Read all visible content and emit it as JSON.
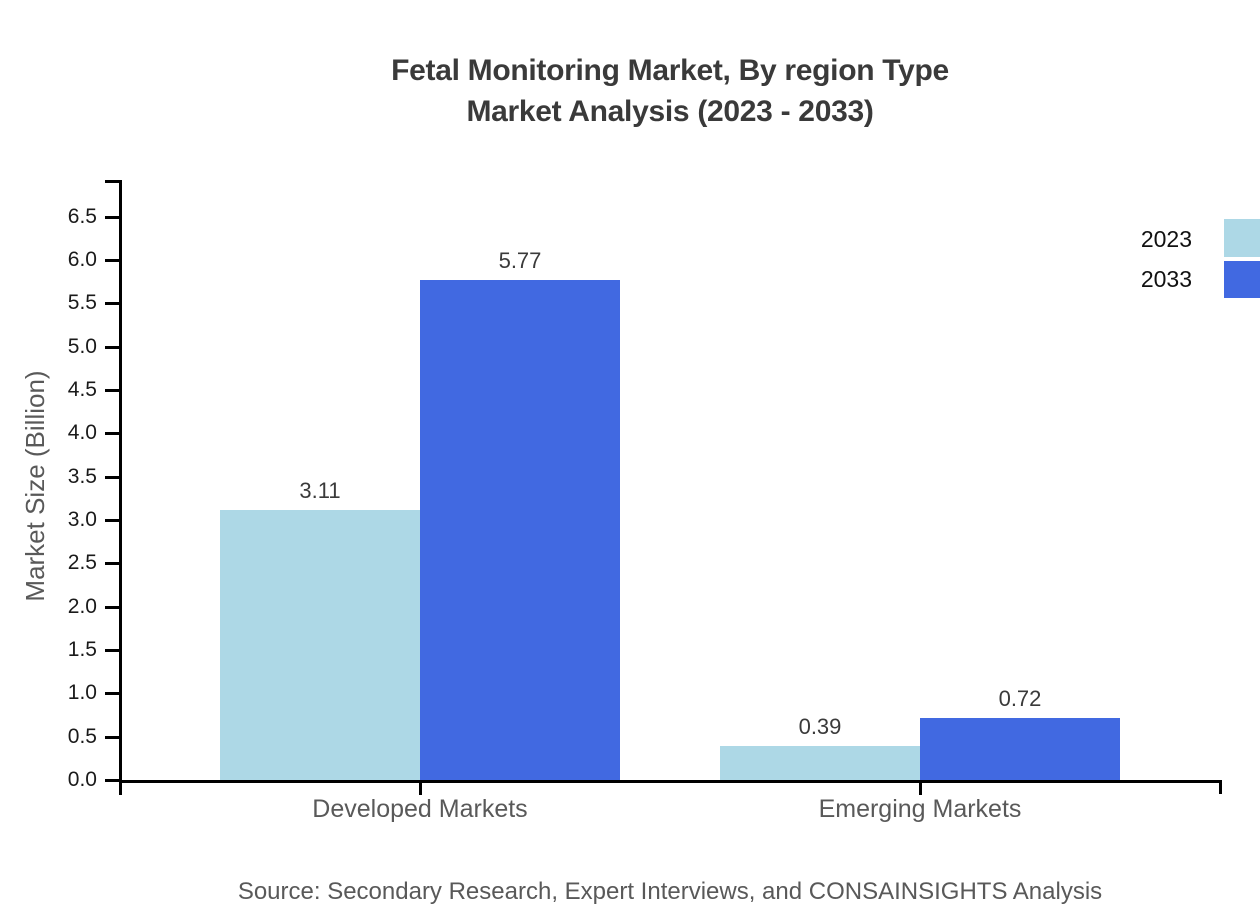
{
  "title": {
    "line1": "Fetal Monitoring Market, By region Type",
    "line2": "Market Analysis (2023 - 2033)"
  },
  "source": "Source: Secondary Research, Expert Interviews, and CONSAINSIGHTS Analysis",
  "legend": [
    {
      "label": "2023",
      "color": "#ADD8E6"
    },
    {
      "label": "2033",
      "color": "#4169E1"
    }
  ],
  "chart_data": {
    "type": "bar",
    "title": "Fetal Monitoring Market, By region Type Market Analysis (2023 - 2033)",
    "categories": [
      "Developed Markets",
      "Emerging Markets"
    ],
    "series": [
      {
        "name": "2023",
        "color": "#ADD8E6",
        "values": [
          3.11,
          0.39
        ],
        "labels": [
          "3.11",
          "0.39"
        ]
      },
      {
        "name": "2033",
        "color": "#4169E1",
        "values": [
          5.77,
          0.72
        ],
        "labels": [
          "5.77",
          "0.72"
        ]
      }
    ],
    "xlabel": "",
    "ylabel": "Market Size (Billion)",
    "ylim": [
      0,
      6.5
    ],
    "ytick_step": 0.5,
    "yticks": [
      "0.0",
      "0.5",
      "1.0",
      "1.5",
      "2.0",
      "2.5",
      "3.0",
      "3.5",
      "4.0",
      "4.5",
      "5.0",
      "5.5",
      "6.0",
      "6.5"
    ],
    "legend_position": "upper right",
    "grid": false
  }
}
